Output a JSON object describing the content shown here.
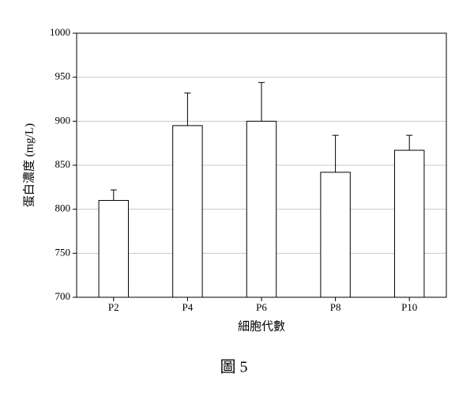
{
  "chart_data": {
    "type": "bar",
    "y_label": "蛋白濃度 (mg/L)",
    "x_label": "細胞代數",
    "caption": "圖 5",
    "categories": [
      "P2",
      "P4",
      "P6",
      "P8",
      "P10"
    ],
    "values": [
      810,
      895,
      900,
      842,
      867
    ],
    "errors": [
      12,
      37,
      44,
      42,
      17
    ],
    "color": "#ffffff",
    "ylim": [
      700,
      1000
    ],
    "yticks": [
      700,
      750,
      800,
      850,
      900,
      950,
      1000
    ],
    "grid": true
  }
}
